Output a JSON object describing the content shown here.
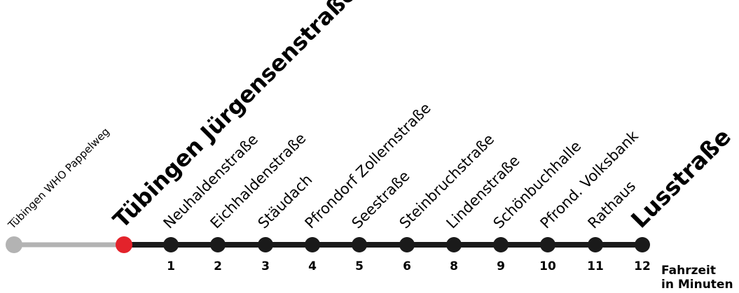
{
  "colors": {
    "past_line": "#b3b3b3",
    "past_stop": "#b3b3b3",
    "current_stop": "#e3232b",
    "route_line": "#1a1a1a",
    "stop": "#1a1a1a"
  },
  "route": {
    "previous_stop": {
      "name": "Tübingen WHO Pappelweg"
    },
    "current_stop": {
      "name": "Tübingen Jürgensenstraße"
    },
    "stops": [
      {
        "name": "Neuhaldenstraße",
        "minutes": "1"
      },
      {
        "name": "Eichhaldenstraße",
        "minutes": "2"
      },
      {
        "name": "Stäudach",
        "minutes": "3"
      },
      {
        "name": "Pfrondorf Zollernstraße",
        "minutes": "4"
      },
      {
        "name": "Seestraße",
        "minutes": "5"
      },
      {
        "name": "Steinbruchstraße",
        "minutes": "6"
      },
      {
        "name": "Lindenstraße",
        "minutes": "8"
      },
      {
        "name": "Schönbuchhalle",
        "minutes": "9"
      },
      {
        "name": "Pfrond. Volksbank",
        "minutes": "10"
      },
      {
        "name": "Rathaus",
        "minutes": "11"
      }
    ],
    "terminus": {
      "name": "Lusstraße",
      "minutes": "12"
    }
  },
  "legend": {
    "line1": "Fahrzeit",
    "line2": "in Minuten"
  }
}
